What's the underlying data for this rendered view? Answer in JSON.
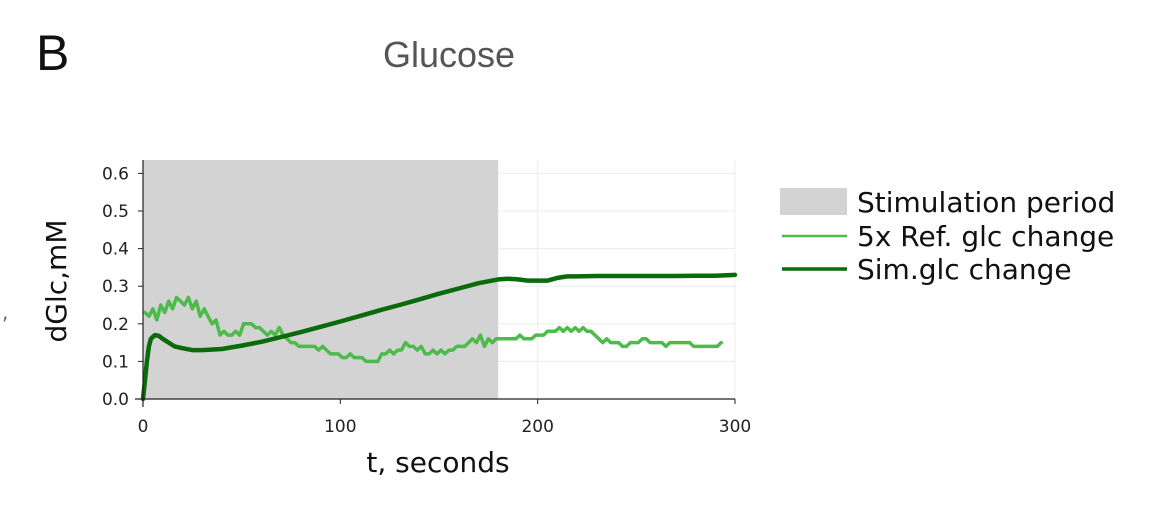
{
  "panel_label": "B",
  "stray_mark": ",",
  "chart_data": {
    "type": "line",
    "title": "Glucose",
    "xlabel": "t, seconds",
    "ylabel": "dGlc,mM",
    "xlim": [
      0,
      300
    ],
    "ylim": [
      0,
      0.63
    ],
    "x_ticks": [
      0,
      100,
      200,
      300
    ],
    "y_ticks": [
      0.0,
      0.1,
      0.2,
      0.3,
      0.4,
      0.5,
      0.6
    ],
    "y_tick_labels": [
      "0.0",
      "0.1",
      "0.2",
      "0.3",
      "0.4",
      "0.5",
      "0.6"
    ],
    "grid": true,
    "legend_position": "right",
    "shaded_region": {
      "name": "Stimulation period",
      "x_start": 0,
      "x_end": 180,
      "color": "#d3d3d3"
    },
    "series": [
      {
        "name": "5x Ref. glc change",
        "color": "#4cbb4c",
        "line_width": "thin",
        "x": [
          1,
          3,
          5,
          7,
          9,
          11,
          13,
          15,
          17,
          19,
          21,
          23,
          25,
          27,
          29,
          31,
          33,
          35,
          37,
          39,
          41,
          43,
          45,
          47,
          49,
          51,
          53,
          55,
          57,
          59,
          61,
          63,
          65,
          67,
          69,
          71,
          73,
          75,
          77,
          79,
          81,
          83,
          85,
          87,
          89,
          91,
          93,
          95,
          97,
          99,
          101,
          103,
          105,
          107,
          109,
          111,
          113,
          115,
          117,
          119,
          121,
          123,
          125,
          127,
          129,
          131,
          133,
          135,
          137,
          139,
          141,
          143,
          145,
          147,
          149,
          151,
          153,
          155,
          157,
          159,
          161,
          163,
          165,
          167,
          169,
          171,
          173,
          175,
          177,
          179,
          181,
          183,
          185,
          187,
          189,
          191,
          193,
          195,
          197,
          199,
          201,
          203,
          205,
          207,
          209,
          211,
          213,
          215,
          217,
          219,
          221,
          223,
          225,
          227,
          229,
          231,
          233,
          235,
          237,
          239,
          241,
          243,
          245,
          247,
          249,
          251,
          253,
          255,
          257,
          259,
          261,
          263,
          265,
          267,
          269,
          271,
          273,
          275,
          277,
          279,
          281,
          283,
          285,
          287,
          289,
          291,
          293
        ],
        "y": [
          0.23,
          0.22,
          0.24,
          0.21,
          0.25,
          0.23,
          0.26,
          0.24,
          0.27,
          0.26,
          0.25,
          0.27,
          0.24,
          0.26,
          0.22,
          0.24,
          0.22,
          0.2,
          0.21,
          0.17,
          0.18,
          0.17,
          0.17,
          0.18,
          0.17,
          0.2,
          0.2,
          0.2,
          0.19,
          0.19,
          0.18,
          0.17,
          0.18,
          0.17,
          0.19,
          0.17,
          0.16,
          0.15,
          0.15,
          0.14,
          0.14,
          0.14,
          0.14,
          0.14,
          0.13,
          0.14,
          0.13,
          0.12,
          0.12,
          0.12,
          0.11,
          0.11,
          0.12,
          0.11,
          0.11,
          0.11,
          0.1,
          0.1,
          0.1,
          0.1,
          0.12,
          0.12,
          0.13,
          0.12,
          0.13,
          0.13,
          0.15,
          0.14,
          0.14,
          0.13,
          0.14,
          0.12,
          0.12,
          0.13,
          0.12,
          0.13,
          0.12,
          0.13,
          0.13,
          0.14,
          0.14,
          0.14,
          0.15,
          0.16,
          0.15,
          0.17,
          0.14,
          0.16,
          0.15,
          0.16,
          0.16,
          0.16,
          0.16,
          0.16,
          0.16,
          0.17,
          0.16,
          0.16,
          0.16,
          0.17,
          0.17,
          0.17,
          0.18,
          0.18,
          0.18,
          0.19,
          0.18,
          0.19,
          0.18,
          0.19,
          0.18,
          0.19,
          0.18,
          0.18,
          0.17,
          0.16,
          0.15,
          0.16,
          0.15,
          0.15,
          0.15,
          0.14,
          0.14,
          0.15,
          0.15,
          0.15,
          0.16,
          0.16,
          0.15,
          0.15,
          0.15,
          0.15,
          0.14,
          0.15,
          0.15,
          0.15,
          0.15,
          0.15,
          0.15,
          0.14,
          0.14,
          0.14,
          0.14,
          0.14,
          0.14,
          0.14,
          0.15
        ]
      },
      {
        "name": "Sim.glc change",
        "color": "#0b6b0b",
        "line_width": "thick",
        "x": [
          0,
          1,
          2,
          3,
          4,
          6,
          8,
          10,
          13,
          16,
          20,
          25,
          30,
          40,
          50,
          60,
          70,
          80,
          90,
          100,
          110,
          120,
          130,
          140,
          150,
          160,
          170,
          180,
          185,
          190,
          195,
          200,
          205,
          210,
          215,
          220,
          230,
          240,
          250,
          260,
          270,
          280,
          290,
          300
        ],
        "y": [
          0.0,
          0.05,
          0.1,
          0.14,
          0.16,
          0.17,
          0.168,
          0.16,
          0.15,
          0.14,
          0.135,
          0.13,
          0.13,
          0.133,
          0.142,
          0.152,
          0.165,
          0.178,
          0.192,
          0.206,
          0.221,
          0.236,
          0.25,
          0.265,
          0.28,
          0.294,
          0.308,
          0.318,
          0.32,
          0.318,
          0.315,
          0.315,
          0.315,
          0.322,
          0.326,
          0.326,
          0.327,
          0.327,
          0.327,
          0.327,
          0.327,
          0.328,
          0.328,
          0.33
        ]
      }
    ]
  }
}
